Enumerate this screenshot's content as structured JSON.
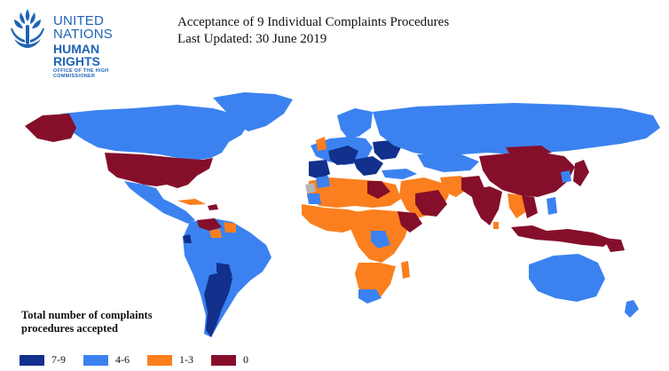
{
  "logo": {
    "line1": "UNITED NATIONS",
    "line2": "HUMAN RIGHTS",
    "line3": "OFFICE OF THE HIGH COMMISSIONER",
    "color": "#1f63b5"
  },
  "title": "Acceptance of  9 Individual Complaints Procedures",
  "subtitle": "Last Updated: 30 June 2019",
  "legend": {
    "title_line1": "Total number of complaints",
    "title_line2": "procedures accepted",
    "items": [
      {
        "label": "7-9",
        "color": "#12308c"
      },
      {
        "label": "4-6",
        "color": "#3b82f0"
      },
      {
        "label": "1-3",
        "color": "#fb7f1e"
      },
      {
        "label": "0",
        "color": "#850f2b"
      }
    ]
  },
  "map_colors": {
    "ocean": "#ffffff",
    "no_data": "#b5b5b5"
  }
}
